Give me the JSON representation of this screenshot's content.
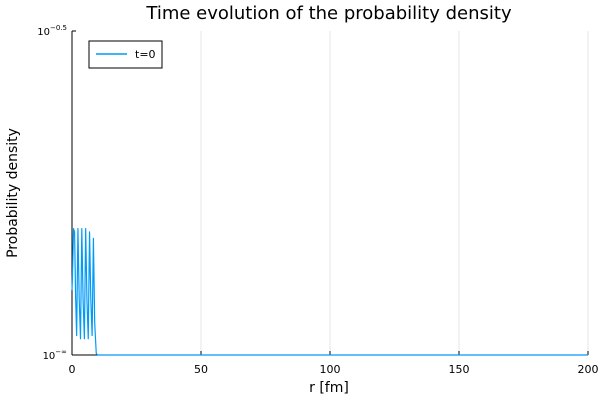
{
  "chart_data": {
    "type": "line",
    "title": "Time evolution of the probability density",
    "xlabel": "r [fm]",
    "ylabel": "Probability density",
    "xlim": [
      0,
      200
    ],
    "x_ticks": [
      0,
      50,
      100,
      150,
      200
    ],
    "x_tick_labels": [
      "0",
      "50",
      "100",
      "150",
      "200"
    ],
    "y_scale": "log10",
    "y_tick_labels": {
      "top": {
        "base": "10",
        "exp": "−0.5"
      },
      "bottom": {
        "base": "10",
        "exp": "−∞"
      }
    },
    "ylim_display": [
      0,
      1
    ],
    "grid": true,
    "legend_position": "top-left",
    "series": [
      {
        "name": "t=0",
        "color": "#009AFA",
        "x": [
          0,
          0.2,
          0.6,
          1.0,
          1.4,
          1.8,
          2.3,
          2.8,
          3.3,
          3.8,
          4.3,
          4.8,
          5.3,
          5.8,
          6.3,
          6.8,
          7.3,
          7.8,
          8.3,
          8.8,
          9.4,
          10,
          20,
          50,
          100,
          150,
          200
        ],
        "y_display": [
          0.2,
          0.25,
          0.39,
          0.38,
          0.18,
          0.06,
          0.39,
          0.17,
          0.05,
          0.39,
          0.17,
          0.05,
          0.39,
          0.17,
          0.05,
          0.38,
          0.17,
          0.06,
          0.36,
          0.1,
          0.005,
          0,
          0,
          0,
          0,
          0,
          0
        ]
      }
    ]
  }
}
